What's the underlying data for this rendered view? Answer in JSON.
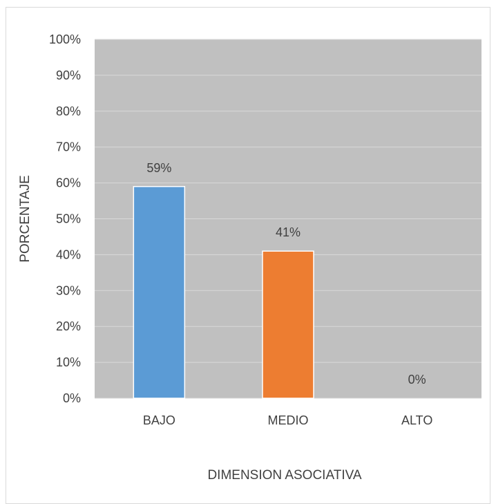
{
  "chart_data": {
    "type": "bar",
    "categories": [
      "BAJO",
      "MEDIO",
      "ALTO"
    ],
    "values": [
      59,
      41,
      0
    ],
    "data_labels": [
      "59%",
      "41%",
      "0%"
    ],
    "bar_colors": [
      "#5b9bd5",
      "#ed7d31",
      "#a5a5a5"
    ],
    "plot_background": "#c0c0c0",
    "gridline_color": "#d9d9d9",
    "title": "",
    "xlabel": "DIMENSION ASOCIATIVA",
    "ylabel": "PORCENTAJE",
    "ylim": [
      0,
      100
    ],
    "yticks": [
      "0%",
      "10%",
      "20%",
      "30%",
      "40%",
      "50%",
      "60%",
      "70%",
      "80%",
      "90%",
      "100%"
    ],
    "grid": true,
    "legend": "none"
  }
}
